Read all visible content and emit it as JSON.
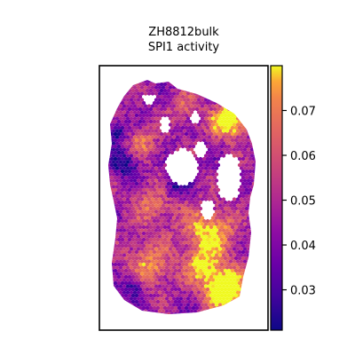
{
  "chart_data": {
    "type": "heatmap",
    "subtype": "spatial-hexbin",
    "title_lines": [
      "ZH8812bulk",
      "SPI1 activity"
    ],
    "colormap": "plasma",
    "value_range": [
      0.021,
      0.08
    ],
    "colorbar_ticks": [
      {
        "value": 0.03,
        "label": "0.03"
      },
      {
        "value": 0.04,
        "label": "0.04"
      },
      {
        "value": 0.05,
        "label": "0.05"
      },
      {
        "value": 0.06,
        "label": "0.06"
      },
      {
        "value": 0.07,
        "label": "0.07"
      }
    ],
    "colorbar_location": "right",
    "xlabel": "",
    "ylabel": "",
    "grid": false
  }
}
